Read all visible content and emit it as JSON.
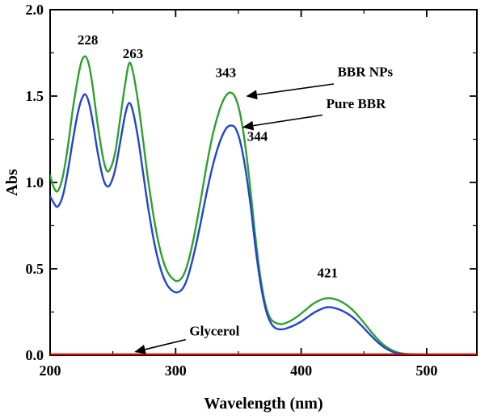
{
  "chart_data": {
    "type": "line",
    "title": "",
    "xlabel": "Wavelength (nm)",
    "ylabel": "Abs",
    "xlim": [
      200,
      540
    ],
    "ylim": [
      0,
      2.0
    ],
    "x_ticks": [
      200,
      300,
      400,
      500
    ],
    "x_minor_ticks": [
      250,
      350,
      450
    ],
    "y_ticks": [
      0.0,
      0.5,
      1.0,
      1.5,
      2.0
    ],
    "y_minor_ticks": [
      0.25,
      0.75,
      1.25,
      1.75
    ],
    "grid": false,
    "legend_position": "none",
    "frame_color": "#000000",
    "series": [
      {
        "name": "BBR NPs",
        "color": "#2ea12e",
        "peaks": [
          228,
          263,
          343,
          421
        ],
        "points": [
          [
            200,
            1.04
          ],
          [
            203,
            0.97
          ],
          [
            206,
            0.95
          ],
          [
            210,
            1.03
          ],
          [
            214,
            1.2
          ],
          [
            218,
            1.42
          ],
          [
            222,
            1.6
          ],
          [
            225,
            1.7
          ],
          [
            228,
            1.73
          ],
          [
            231,
            1.68
          ],
          [
            234,
            1.55
          ],
          [
            238,
            1.33
          ],
          [
            242,
            1.15
          ],
          [
            245,
            1.07
          ],
          [
            248,
            1.08
          ],
          [
            252,
            1.18
          ],
          [
            256,
            1.38
          ],
          [
            260,
            1.58
          ],
          [
            263,
            1.69
          ],
          [
            266,
            1.64
          ],
          [
            270,
            1.47
          ],
          [
            274,
            1.25
          ],
          [
            278,
            1.02
          ],
          [
            283,
            0.78
          ],
          [
            288,
            0.6
          ],
          [
            293,
            0.49
          ],
          [
            298,
            0.44
          ],
          [
            302,
            0.43
          ],
          [
            306,
            0.46
          ],
          [
            310,
            0.54
          ],
          [
            315,
            0.7
          ],
          [
            320,
            0.9
          ],
          [
            325,
            1.11
          ],
          [
            330,
            1.29
          ],
          [
            335,
            1.42
          ],
          [
            339,
            1.49
          ],
          [
            343,
            1.52
          ],
          [
            347,
            1.5
          ],
          [
            351,
            1.41
          ],
          [
            355,
            1.24
          ],
          [
            359,
            1.0
          ],
          [
            363,
            0.72
          ],
          [
            367,
            0.48
          ],
          [
            371,
            0.31
          ],
          [
            375,
            0.22
          ],
          [
            379,
            0.19
          ],
          [
            384,
            0.18
          ],
          [
            389,
            0.19
          ],
          [
            394,
            0.21
          ],
          [
            399,
            0.235
          ],
          [
            404,
            0.265
          ],
          [
            409,
            0.295
          ],
          [
            414,
            0.315
          ],
          [
            418,
            0.327
          ],
          [
            421,
            0.33
          ],
          [
            425,
            0.328
          ],
          [
            430,
            0.317
          ],
          [
            436,
            0.292
          ],
          [
            442,
            0.255
          ],
          [
            448,
            0.206
          ],
          [
            454,
            0.152
          ],
          [
            460,
            0.1
          ],
          [
            466,
            0.058
          ],
          [
            472,
            0.03
          ],
          [
            478,
            0.014
          ],
          [
            484,
            0.007
          ],
          [
            492,
            0.004
          ],
          [
            500,
            0.003
          ],
          [
            515,
            0.003
          ],
          [
            530,
            0.003
          ],
          [
            540,
            0.003
          ]
        ]
      },
      {
        "name": "Pure BBR",
        "color": "#2343d0",
        "peaks": [
          228,
          263,
          344,
          421
        ],
        "points": [
          [
            200,
            0.92
          ],
          [
            203,
            0.88
          ],
          [
            206,
            0.86
          ],
          [
            210,
            0.92
          ],
          [
            214,
            1.06
          ],
          [
            218,
            1.24
          ],
          [
            222,
            1.4
          ],
          [
            225,
            1.48
          ],
          [
            228,
            1.51
          ],
          [
            231,
            1.46
          ],
          [
            234,
            1.35
          ],
          [
            238,
            1.17
          ],
          [
            242,
            1.03
          ],
          [
            245,
            0.98
          ],
          [
            248,
            0.99
          ],
          [
            252,
            1.08
          ],
          [
            256,
            1.24
          ],
          [
            260,
            1.4
          ],
          [
            263,
            1.46
          ],
          [
            266,
            1.41
          ],
          [
            270,
            1.26
          ],
          [
            274,
            1.06
          ],
          [
            278,
            0.86
          ],
          [
            283,
            0.65
          ],
          [
            288,
            0.5
          ],
          [
            293,
            0.41
          ],
          [
            298,
            0.37
          ],
          [
            302,
            0.365
          ],
          [
            306,
            0.39
          ],
          [
            310,
            0.46
          ],
          [
            315,
            0.6
          ],
          [
            320,
            0.77
          ],
          [
            325,
            0.95
          ],
          [
            330,
            1.11
          ],
          [
            335,
            1.23
          ],
          [
            340,
            1.31
          ],
          [
            344,
            1.33
          ],
          [
            348,
            1.31
          ],
          [
            352,
            1.22
          ],
          [
            356,
            1.06
          ],
          [
            360,
            0.85
          ],
          [
            364,
            0.6
          ],
          [
            368,
            0.4
          ],
          [
            372,
            0.26
          ],
          [
            376,
            0.185
          ],
          [
            380,
            0.155
          ],
          [
            385,
            0.15
          ],
          [
            390,
            0.16
          ],
          [
            395,
            0.175
          ],
          [
            400,
            0.195
          ],
          [
            405,
            0.22
          ],
          [
            410,
            0.245
          ],
          [
            415,
            0.264
          ],
          [
            418,
            0.273
          ],
          [
            421,
            0.278
          ],
          [
            425,
            0.276
          ],
          [
            430,
            0.266
          ],
          [
            436,
            0.245
          ],
          [
            442,
            0.214
          ],
          [
            448,
            0.172
          ],
          [
            454,
            0.126
          ],
          [
            460,
            0.082
          ],
          [
            466,
            0.046
          ],
          [
            472,
            0.022
          ],
          [
            478,
            0.01
          ],
          [
            484,
            0.005
          ],
          [
            492,
            0.003
          ],
          [
            500,
            0.002
          ],
          [
            515,
            0.002
          ],
          [
            530,
            0.002
          ],
          [
            540,
            0.002
          ]
        ]
      },
      {
        "name": "Glycerol",
        "color": "#dd0000",
        "peaks": [],
        "points": [
          [
            200,
            0.005
          ],
          [
            250,
            0.005
          ],
          [
            300,
            0.005
          ],
          [
            350,
            0.005
          ],
          [
            400,
            0.005
          ],
          [
            450,
            0.005
          ],
          [
            500,
            0.005
          ],
          [
            540,
            0.005
          ]
        ]
      }
    ],
    "annotations": [
      {
        "text": "228",
        "x": 230,
        "y": 1.8,
        "anchor": "middle"
      },
      {
        "text": "263",
        "x": 266,
        "y": 1.72,
        "anchor": "middle"
      },
      {
        "text": "343",
        "x": 340,
        "y": 1.61,
        "anchor": "middle"
      },
      {
        "text": "344",
        "x": 357,
        "y": 1.24,
        "anchor": "start"
      },
      {
        "text": "421",
        "x": 421,
        "y": 0.45,
        "anchor": "middle"
      }
    ],
    "arrow_labels": [
      {
        "text": "BBR NPs",
        "x": 429,
        "y": 1.615,
        "anchor": "start",
        "arrow": {
          "x1": 426,
          "y1": 1.57,
          "x2": 357,
          "y2": 1.5
        }
      },
      {
        "text": "Pure BBR",
        "x": 420,
        "y": 1.43,
        "anchor": "start",
        "arrow": {
          "x1": 417,
          "y1": 1.39,
          "x2": 354,
          "y2": 1.32
        }
      },
      {
        "text": "Glycerol",
        "x": 311,
        "y": 0.115,
        "anchor": "start",
        "arrow": {
          "x1": 308,
          "y1": 0.09,
          "x2": 268,
          "y2": 0.02
        }
      }
    ]
  }
}
